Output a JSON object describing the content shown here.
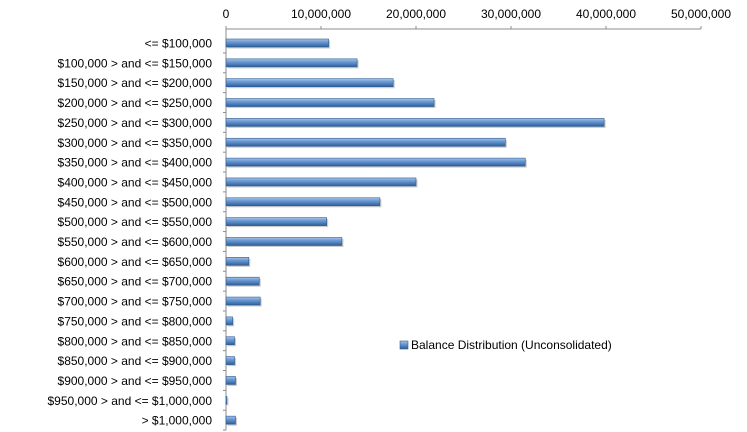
{
  "chart_data": {
    "type": "bar",
    "orientation": "horizontal",
    "title": "",
    "xlabel": "",
    "ylabel": "",
    "xlim": [
      0,
      50000000
    ],
    "x_ticks": [
      0,
      10000000,
      20000000,
      30000000,
      40000000,
      50000000
    ],
    "x_tick_labels": [
      "0",
      "10,000,000",
      "20,000,000",
      "30,000,000",
      "40,000,000",
      "50,000,000"
    ],
    "x_axis_position": "top",
    "grid": false,
    "legend_position": "right",
    "categories": [
      "<= $100,000",
      "$100,000 > and <= $150,000",
      "$150,000 > and <= $200,000",
      "$200,000 > and <= $250,000",
      "$250,000 > and <= $300,000",
      "$300,000 > and <= $350,000",
      "$350,000 > and <= $400,000",
      "$400,000 > and <= $450,000",
      "$450,000 > and <= $500,000",
      "$500,000 > and <= $550,000",
      "$550,000 > and <= $600,000",
      "$600,000 > and <= $650,000",
      "$650,000 > and <= $700,000",
      "$700,000 > and <= $750,000",
      "$750,000 > and <= $800,000",
      "$800,000 > and <= $850,000",
      "$850,000 > and <= $900,000",
      "$900,000 > and <= $950,000",
      "$950,000 > and <= $1,000,000",
      "> $1,000,000"
    ],
    "series": [
      {
        "name": "Balance Distribution (Unconsolidated)",
        "color": "#4f81bd",
        "values": [
          10800000,
          13800000,
          17600000,
          21900000,
          39800000,
          29400000,
          31500000,
          20000000,
          16200000,
          10600000,
          12200000,
          2400000,
          3500000,
          3600000,
          700000,
          900000,
          900000,
          1000000,
          100000,
          1000000
        ]
      }
    ]
  }
}
